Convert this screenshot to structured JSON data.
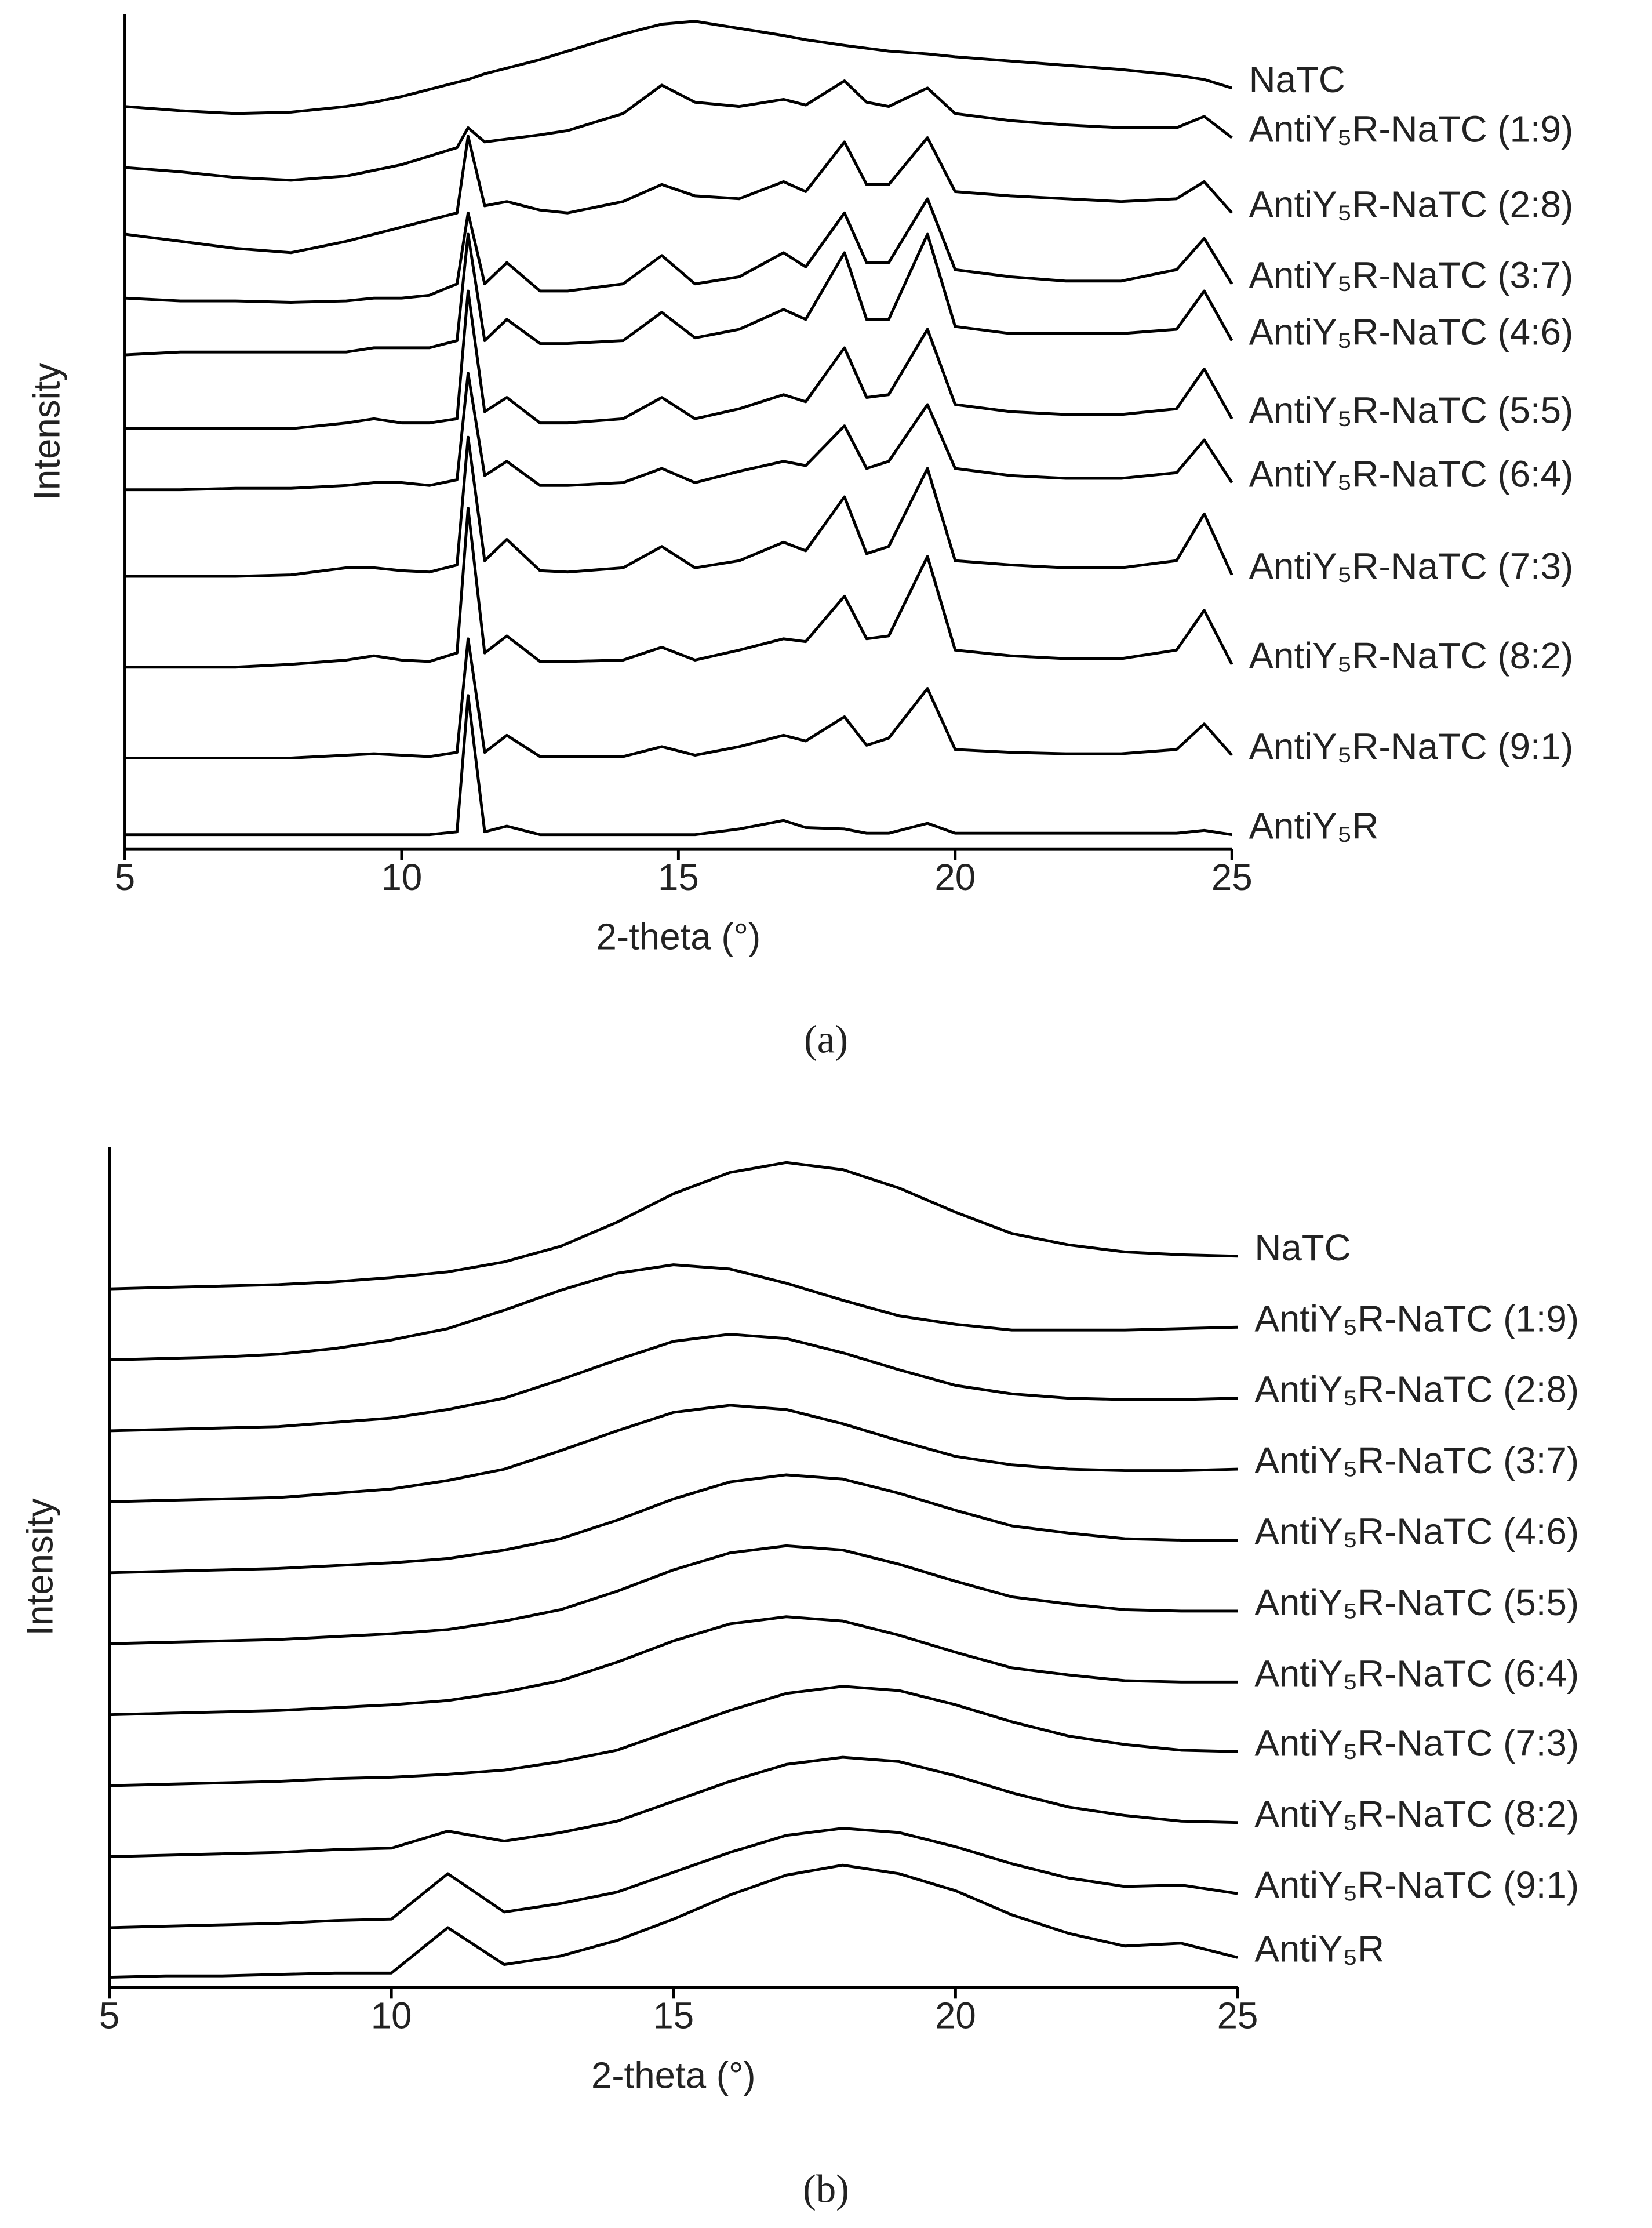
{
  "chart_data": [
    {
      "type": "line",
      "panel_label": "(a)",
      "xlabel": "2-theta (°)",
      "ylabel": "Intensity",
      "xlim": [
        5,
        25
      ],
      "ylim": [
        0,
        588
      ],
      "xticks": [
        5,
        10,
        15,
        20,
        25
      ],
      "x": [
        5,
        6,
        7,
        8,
        9,
        9.5,
        10,
        10.5,
        11,
        11.2,
        11.5,
        11.9,
        12.5,
        13,
        14,
        14.7,
        15.3,
        16.1,
        16.9,
        17.3,
        18,
        18.4,
        18.8,
        19.5,
        20,
        21,
        22,
        23,
        24,
        24.5,
        25
      ],
      "series": [
        {
          "name": "NaTC",
          "color": "#000000",
          "values": [
            523,
            520,
            518,
            519,
            523,
            526,
            530,
            535,
            540,
            542,
            546,
            550,
            556,
            562,
            574,
            581,
            583,
            578,
            573,
            570,
            566,
            564,
            562,
            560,
            558,
            555,
            552,
            549,
            545,
            542,
            536
          ]
        },
        {
          "name": "AntiY₅R-NaTC (1:9)",
          "color": "#000000",
          "values": [
            480,
            477,
            473,
            471,
            474,
            478,
            482,
            488,
            494,
            508,
            498,
            500,
            503,
            506,
            518,
            538,
            526,
            523,
            528,
            524,
            541,
            526,
            523,
            536,
            518,
            513,
            510,
            508,
            508,
            516,
            501
          ]
        },
        {
          "name": "AntiY₅R-NaTC (2:8)",
          "color": "#000000",
          "values": [
            433,
            428,
            423,
            420,
            428,
            433,
            438,
            443,
            448,
            502,
            453,
            456,
            450,
            448,
            456,
            468,
            460,
            458,
            470,
            463,
            498,
            468,
            468,
            501,
            463,
            460,
            458,
            456,
            458,
            470,
            448
          ]
        },
        {
          "name": "AntiY₅R-NaTC (3:7)",
          "color": "#000000",
          "values": [
            388,
            386,
            386,
            385,
            386,
            388,
            388,
            390,
            398,
            448,
            398,
            413,
            393,
            393,
            398,
            418,
            398,
            403,
            420,
            410,
            448,
            413,
            413,
            458,
            408,
            403,
            400,
            400,
            408,
            430,
            398
          ]
        },
        {
          "name": "AntiY₅R-NaTC (4:6)",
          "color": "#000000",
          "values": [
            348,
            350,
            350,
            350,
            350,
            353,
            353,
            353,
            358,
            433,
            358,
            373,
            356,
            356,
            358,
            378,
            360,
            366,
            380,
            373,
            420,
            373,
            373,
            433,
            368,
            363,
            363,
            363,
            366,
            393,
            358
          ]
        },
        {
          "name": "AntiY₅R-NaTC (5:5)",
          "color": "#000000",
          "values": [
            296,
            296,
            296,
            296,
            300,
            303,
            300,
            300,
            303,
            393,
            308,
            318,
            300,
            300,
            303,
            318,
            303,
            310,
            320,
            315,
            353,
            318,
            320,
            366,
            313,
            308,
            306,
            306,
            310,
            338,
            303
          ]
        },
        {
          "name": "AntiY₅R-NaTC (6:4)",
          "color": "#000000",
          "values": [
            253,
            253,
            254,
            254,
            256,
            258,
            258,
            256,
            260,
            335,
            263,
            273,
            256,
            256,
            258,
            268,
            258,
            266,
            273,
            270,
            298,
            268,
            273,
            313,
            268,
            263,
            261,
            261,
            265,
            288,
            258
          ]
        },
        {
          "name": "AntiY₅R-NaTC (7:3)",
          "color": "#000000",
          "values": [
            192,
            192,
            192,
            193,
            198,
            198,
            196,
            195,
            200,
            290,
            203,
            218,
            196,
            195,
            198,
            213,
            198,
            203,
            216,
            210,
            248,
            208,
            213,
            268,
            203,
            200,
            198,
            198,
            203,
            236,
            193
          ]
        },
        {
          "name": "AntiY₅R-NaTC (8:2)",
          "color": "#000000",
          "values": [
            128,
            128,
            128,
            130,
            133,
            136,
            133,
            132,
            138,
            240,
            138,
            150,
            132,
            132,
            133,
            142,
            133,
            140,
            148,
            146,
            178,
            148,
            150,
            206,
            140,
            136,
            134,
            134,
            140,
            168,
            130
          ]
        },
        {
          "name": "AntiY₅R-NaTC (9:1)",
          "color": "#000000",
          "values": [
            64,
            64,
            64,
            64,
            66,
            67,
            66,
            65,
            68,
            148,
            68,
            80,
            65,
            65,
            65,
            72,
            66,
            72,
            80,
            76,
            93,
            73,
            78,
            113,
            70,
            68,
            67,
            67,
            70,
            88,
            66
          ]
        },
        {
          "name": "AntiY₅R",
          "color": "#000000",
          "values": [
            10,
            10,
            10,
            10,
            10,
            10,
            10,
            10,
            12,
            108,
            12,
            16,
            10,
            10,
            10,
            10,
            10,
            14,
            20,
            15,
            14,
            11,
            11,
            18,
            11,
            11,
            11,
            11,
            11,
            13,
            10
          ]
        }
      ]
    },
    {
      "type": "line",
      "panel_label": "(b)",
      "xlabel": "2-theta (°)",
      "ylabel": "Intensity",
      "xlim": [
        5,
        25
      ],
      "ylim": [
        0,
        592
      ],
      "xticks": [
        5,
        10,
        15,
        20,
        25
      ],
      "x": [
        5,
        6,
        7,
        8,
        9,
        10,
        11,
        12,
        13,
        14,
        15,
        16,
        17,
        18,
        19,
        20,
        21,
        22,
        23,
        24,
        25
      ],
      "series": [
        {
          "name": "NaTC",
          "color": "#000000",
          "values": [
            492,
            493,
            494,
            495,
            497,
            500,
            504,
            511,
            522,
            539,
            559,
            574,
            581,
            576,
            563,
            546,
            531,
            523,
            518,
            516,
            515
          ]
        },
        {
          "name": "AntiY₅R-NaTC (1:9)",
          "color": "#000000",
          "values": [
            442,
            443,
            444,
            446,
            450,
            456,
            464,
            477,
            491,
            503,
            509,
            506,
            496,
            484,
            473,
            467,
            463,
            463,
            463,
            464,
            465
          ]
        },
        {
          "name": "AntiY₅R-NaTC (2:8)",
          "color": "#000000",
          "values": [
            392,
            393,
            394,
            395,
            398,
            401,
            407,
            415,
            428,
            442,
            455,
            460,
            457,
            447,
            435,
            424,
            418,
            415,
            414,
            414,
            415
          ]
        },
        {
          "name": "AntiY₅R-NaTC (3:7)",
          "color": "#000000",
          "values": [
            342,
            343,
            344,
            345,
            348,
            351,
            357,
            365,
            378,
            392,
            405,
            410,
            407,
            397,
            385,
            374,
            368,
            365,
            364,
            364,
            365
          ]
        },
        {
          "name": "AntiY₅R-NaTC (4:6)",
          "color": "#000000",
          "values": [
            292,
            293,
            294,
            295,
            297,
            299,
            302,
            308,
            316,
            329,
            344,
            356,
            361,
            358,
            348,
            336,
            325,
            320,
            316,
            315,
            315
          ]
        },
        {
          "name": "AntiY₅R-NaTC (5:5)",
          "color": "#000000",
          "values": [
            242,
            243,
            244,
            245,
            247,
            249,
            252,
            258,
            266,
            279,
            294,
            306,
            311,
            308,
            298,
            286,
            275,
            270,
            266,
            265,
            265
          ]
        },
        {
          "name": "AntiY₅R-NaTC (6:4)",
          "color": "#000000",
          "values": [
            192,
            193,
            194,
            195,
            197,
            199,
            202,
            208,
            216,
            229,
            244,
            256,
            261,
            258,
            248,
            236,
            225,
            220,
            216,
            215,
            215
          ]
        },
        {
          "name": "AntiY₅R-NaTC (7:3)",
          "color": "#000000",
          "values": [
            142,
            143,
            144,
            145,
            147,
            148,
            150,
            153,
            159,
            167,
            181,
            195,
            207,
            212,
            209,
            199,
            187,
            177,
            171,
            167,
            166
          ]
        },
        {
          "name": "AntiY₅R-NaTC (8:2)",
          "color": "#000000",
          "values": [
            92,
            93,
            94,
            95,
            97,
            98,
            110,
            103,
            109,
            117,
            131,
            145,
            157,
            162,
            159,
            149,
            137,
            127,
            121,
            117,
            116
          ]
        },
        {
          "name": "AntiY₅R-NaTC (9:1)",
          "color": "#000000",
          "values": [
            42,
            43,
            44,
            45,
            47,
            48,
            80,
            53,
            59,
            67,
            81,
            95,
            107,
            112,
            109,
            99,
            87,
            77,
            71,
            72,
            66
          ]
        },
        {
          "name": "AntiY₅R",
          "color": "#000000",
          "values": [
            7,
            8,
            8,
            9,
            10,
            10,
            42,
            16,
            22,
            33,
            48,
            65,
            79,
            86,
            80,
            68,
            51,
            38,
            29,
            31,
            21
          ]
        }
      ]
    }
  ]
}
